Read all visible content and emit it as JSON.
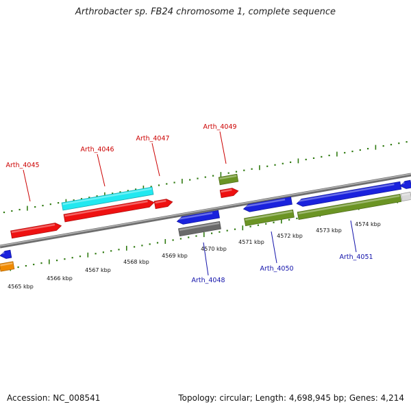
{
  "title": "Arthrobacter sp. FB24 chromosome 1, complete sequence",
  "footer": {
    "accession": "Accession: NC_008541",
    "topology": "Topology: circular; Length: 4,698,945 bp; Genes: 4,214"
  },
  "colors": {
    "backbone": "#8a8a8a",
    "tick": "#2f7a10",
    "red": "#ee1111",
    "cyan": "#22e8f0",
    "blue": "#1a22dd",
    "olive": "#6b9424",
    "gray": "#6a6a6a",
    "orange": "#f08a00",
    "label_red": "#cc0000",
    "label_blue": "#1111aa"
  },
  "kbp_labels": [
    "4565 kbp",
    "4566 kbp",
    "4567 kbp",
    "4568 kbp",
    "4569 kbp",
    "4570 kbp",
    "4571 kbp",
    "4572 kbp",
    "4573 kbp",
    "4574 kbp"
  ],
  "gene_labels": [
    {
      "text": "Arth_4045",
      "color": "red"
    },
    {
      "text": "Arth_4046",
      "color": "red"
    },
    {
      "text": "Arth_4047",
      "color": "red"
    },
    {
      "text": "Arth_4049",
      "color": "red"
    },
    {
      "text": "Arth_4048",
      "color": "blue"
    },
    {
      "text": "Arth_4050",
      "color": "blue"
    },
    {
      "text": "Arth_4051",
      "color": "blue"
    }
  ]
}
